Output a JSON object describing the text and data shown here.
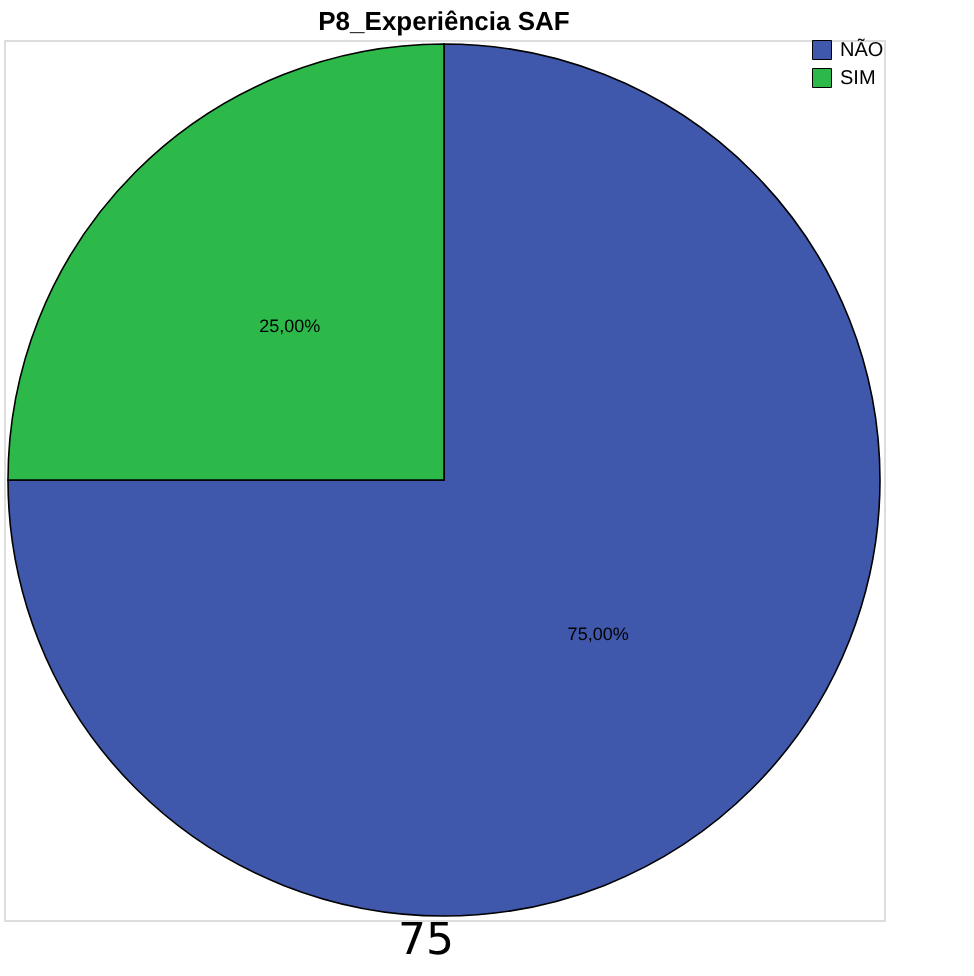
{
  "chart_data": {
    "type": "pie",
    "title": "P8_Experiência SAF",
    "categories": [
      "NÃO",
      "SIM"
    ],
    "values": [
      75,
      25
    ],
    "colors": [
      "#3f58ab",
      "#2db84a"
    ],
    "value_labels": [
      "75,00%",
      "25,00%"
    ],
    "legend": "top right",
    "annotations": [
      "75"
    ]
  }
}
